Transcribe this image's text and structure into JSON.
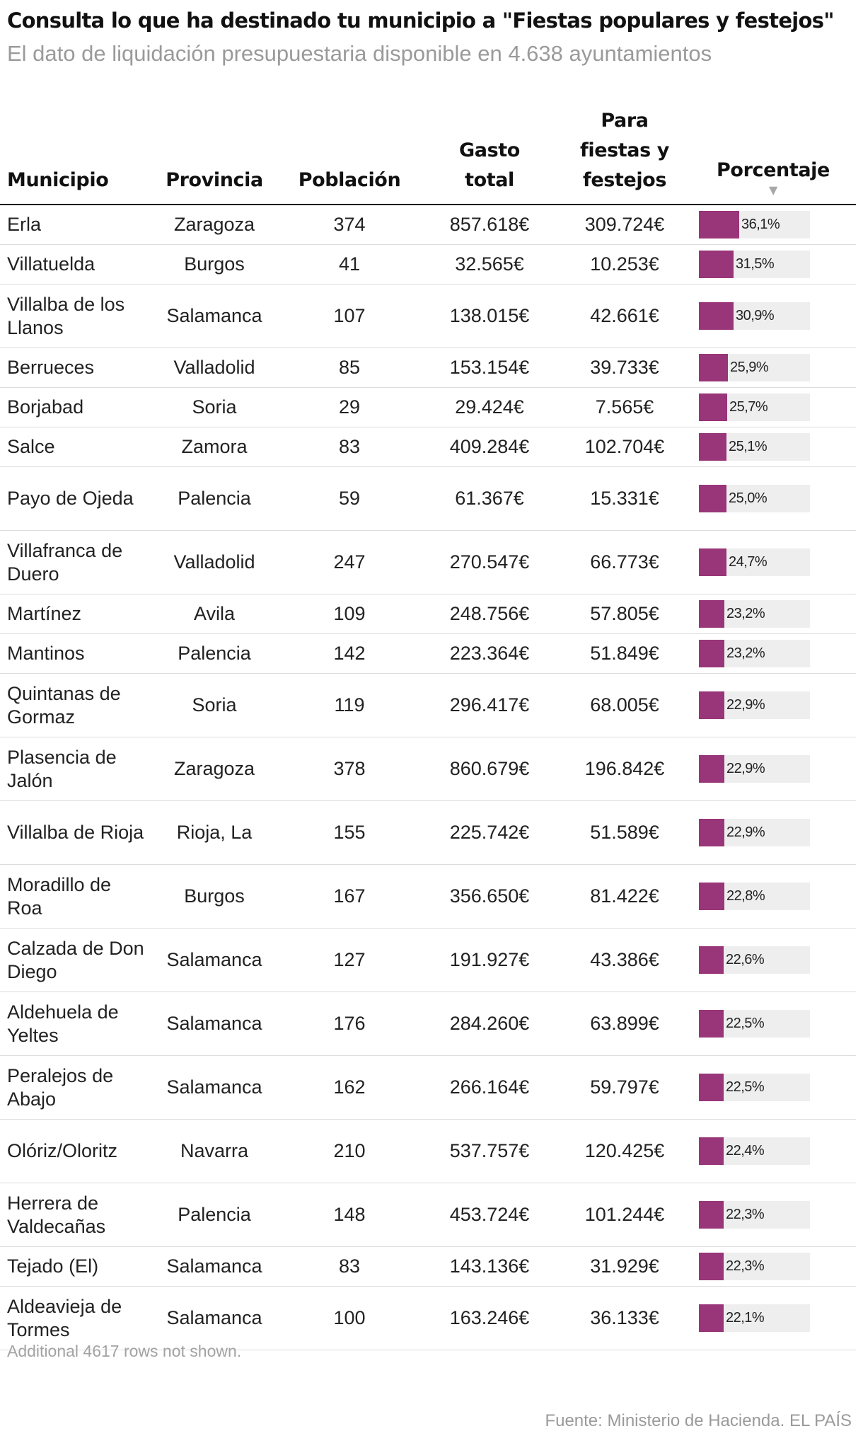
{
  "title": "Consulta lo que ha destinado tu municipio a \"Fiestas populares y festejos\"",
  "subtitle": "El dato de liquidación presupuestaria disponible en 4.638 ayuntamientos",
  "headers": {
    "municipio": "Municipio",
    "provincia": "Provincia",
    "poblacion": "Población",
    "gasto_total": "Gasto total",
    "fiestas": "Para fiestas y festejos",
    "porcentaje": "Porcentaje",
    "sort_icon": "▼"
  },
  "colors": {
    "bar": "#993579",
    "bar_track": "#eeeeee"
  },
  "icons": {
    "sort": "sort-descending-icon"
  },
  "rows": [
    {
      "municipio": "Erla",
      "provincia": "Zaragoza",
      "poblacion": "374",
      "gasto_total": "857.618€",
      "fiestas": "309.724€",
      "porcentaje": "36,1%",
      "pct": 36.1
    },
    {
      "municipio": "Villatuelda",
      "provincia": "Burgos",
      "poblacion": "41",
      "gasto_total": "32.565€",
      "fiestas": "10.253€",
      "porcentaje": "31,5%",
      "pct": 31.5
    },
    {
      "municipio": "Villalba de los Llanos",
      "provincia": "Salamanca",
      "poblacion": "107",
      "gasto_total": "138.015€",
      "fiestas": "42.661€",
      "porcentaje": "30,9%",
      "pct": 30.9
    },
    {
      "municipio": "Berrueces",
      "provincia": "Valladolid",
      "poblacion": "85",
      "gasto_total": "153.154€",
      "fiestas": "39.733€",
      "porcentaje": "25,9%",
      "pct": 25.9
    },
    {
      "municipio": "Borjabad",
      "provincia": "Soria",
      "poblacion": "29",
      "gasto_total": "29.424€",
      "fiestas": "7.565€",
      "porcentaje": "25,7%",
      "pct": 25.7
    },
    {
      "municipio": "Salce",
      "provincia": "Zamora",
      "poblacion": "83",
      "gasto_total": "409.284€",
      "fiestas": "102.704€",
      "porcentaje": "25,1%",
      "pct": 25.1
    },
    {
      "municipio": "Payo de Ojeda",
      "provincia": "Palencia",
      "poblacion": "59",
      "gasto_total": "61.367€",
      "fiestas": "15.331€",
      "porcentaje": "25,0%",
      "pct": 25.0
    },
    {
      "municipio": "Villafranca de Duero",
      "provincia": "Valladolid",
      "poblacion": "247",
      "gasto_total": "270.547€",
      "fiestas": "66.773€",
      "porcentaje": "24,7%",
      "pct": 24.7
    },
    {
      "municipio": "Martínez",
      "provincia": "Avila",
      "poblacion": "109",
      "gasto_total": "248.756€",
      "fiestas": "57.805€",
      "porcentaje": "23,2%",
      "pct": 23.2
    },
    {
      "municipio": "Mantinos",
      "provincia": "Palencia",
      "poblacion": "142",
      "gasto_total": "223.364€",
      "fiestas": "51.849€",
      "porcentaje": "23,2%",
      "pct": 23.2
    },
    {
      "municipio": "Quintanas de Gormaz",
      "provincia": "Soria",
      "poblacion": "119",
      "gasto_total": "296.417€",
      "fiestas": "68.005€",
      "porcentaje": "22,9%",
      "pct": 22.9
    },
    {
      "municipio": "Plasencia de Jalón",
      "provincia": "Zaragoza",
      "poblacion": "378",
      "gasto_total": "860.679€",
      "fiestas": "196.842€",
      "porcentaje": "22,9%",
      "pct": 22.9
    },
    {
      "municipio": "Villalba de Rioja",
      "provincia": "Rioja, La",
      "poblacion": "155",
      "gasto_total": "225.742€",
      "fiestas": "51.589€",
      "porcentaje": "22,9%",
      "pct": 22.9
    },
    {
      "municipio": "Moradillo de Roa",
      "provincia": "Burgos",
      "poblacion": "167",
      "gasto_total": "356.650€",
      "fiestas": "81.422€",
      "porcentaje": "22,8%",
      "pct": 22.8
    },
    {
      "municipio": "Calzada de Don Diego",
      "provincia": "Salamanca",
      "poblacion": "127",
      "gasto_total": "191.927€",
      "fiestas": "43.386€",
      "porcentaje": "22,6%",
      "pct": 22.6
    },
    {
      "municipio": "Aldehuela de Yeltes",
      "provincia": "Salamanca",
      "poblacion": "176",
      "gasto_total": "284.260€",
      "fiestas": "63.899€",
      "porcentaje": "22,5%",
      "pct": 22.5
    },
    {
      "municipio": "Peralejos de Abajo",
      "provincia": "Salamanca",
      "poblacion": "162",
      "gasto_total": "266.164€",
      "fiestas": "59.797€",
      "porcentaje": "22,5%",
      "pct": 22.5
    },
    {
      "municipio": "Olóriz/Oloritz",
      "provincia": "Navarra",
      "poblacion": "210",
      "gasto_total": "537.757€",
      "fiestas": "120.425€",
      "porcentaje": "22,4%",
      "pct": 22.4
    },
    {
      "municipio": "Herrera de Valdecañas",
      "provincia": "Palencia",
      "poblacion": "148",
      "gasto_total": "453.724€",
      "fiestas": "101.244€",
      "porcentaje": "22,3%",
      "pct": 22.3
    },
    {
      "municipio": "Tejado (El)",
      "provincia": "Salamanca",
      "poblacion": "83",
      "gasto_total": "143.136€",
      "fiestas": "31.929€",
      "porcentaje": "22,3%",
      "pct": 22.3
    },
    {
      "municipio": "Aldeavieja de Tormes",
      "provincia": "Salamanca",
      "poblacion": "100",
      "gasto_total": "163.246€",
      "fiestas": "36.133€",
      "porcentaje": "22,1%",
      "pct": 22.1
    }
  ],
  "more_rows_note": "Additional 4617 rows not shown.",
  "source": "Fuente: Ministerio de Hacienda. EL PAÍS",
  "chart_data": {
    "type": "table",
    "title": "Consulta lo que ha destinado tu municipio a \"Fiestas populares y festejos\"",
    "subtitle": "El dato de liquidación presupuestaria disponible en 4.638 ayuntamientos",
    "columns": [
      "Municipio",
      "Provincia",
      "Población",
      "Gasto total",
      "Para fiestas y festejos",
      "Porcentaje"
    ],
    "sorted_by": "Porcentaje",
    "sort_order": "descending",
    "bar_column": "Porcentaje",
    "bar_scale_max": 100,
    "bar_color": "#993579"
  }
}
